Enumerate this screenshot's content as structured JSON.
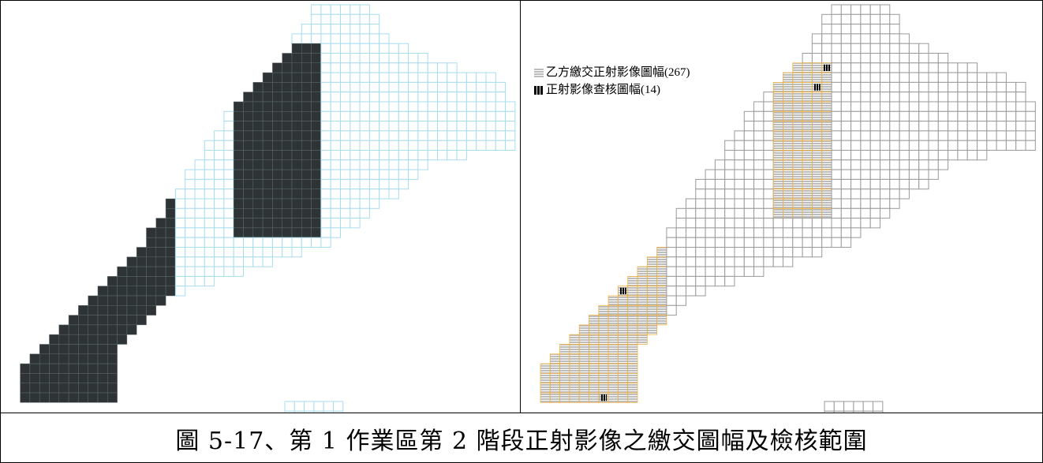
{
  "caption": "圖 5-17、第 1 作業區第 2 階段正射影像之繳交圖幅及檢核範圍",
  "legend": {
    "delivered_label": "乙方繳交正射影像圖幅(267)",
    "checked_label": "正射影像查核圖幅(14)"
  },
  "colors": {
    "outline_left": "#a8dcef",
    "imagery_dark": "#2e3436",
    "outline_right": "#9a9a9a",
    "delivered_fill": "#bdbdbd",
    "delivered_border": "#f0b041",
    "checked_fill": "#000000"
  }
}
